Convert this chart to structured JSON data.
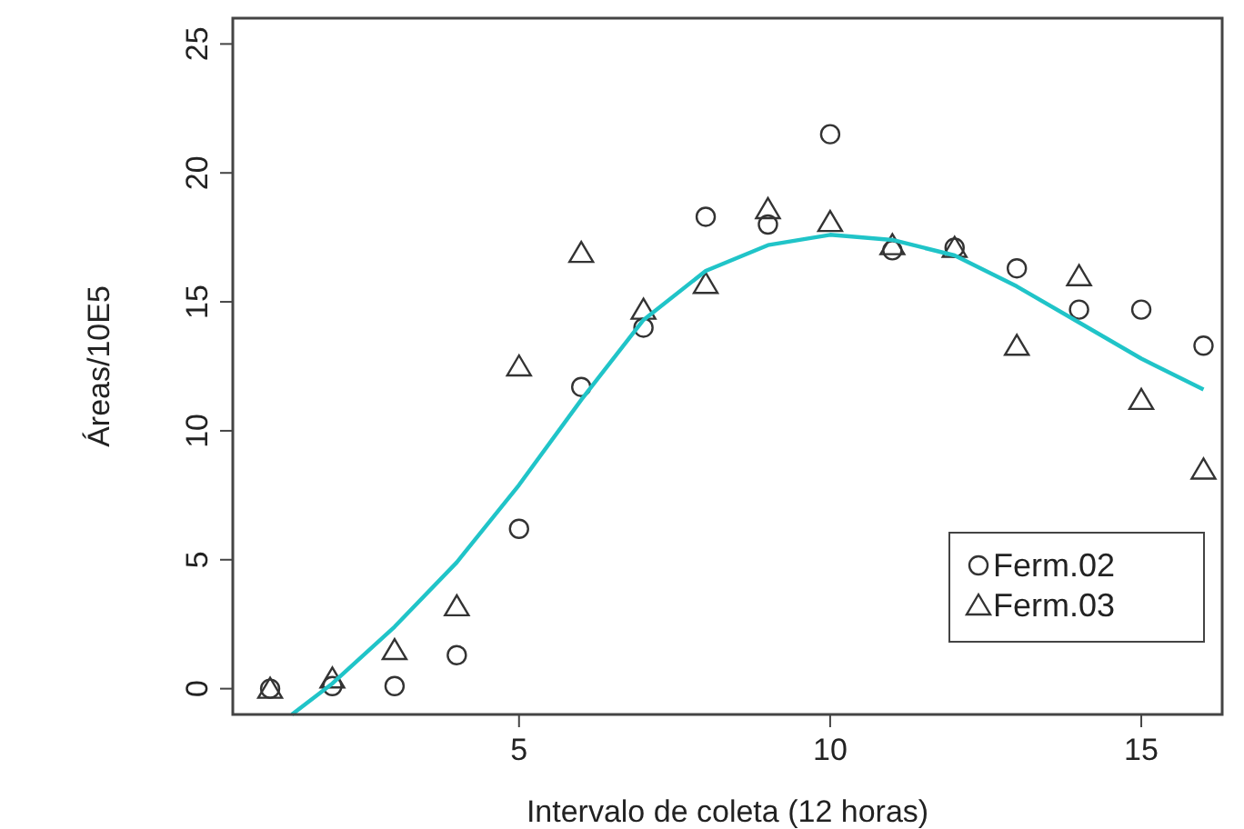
{
  "chart_data": {
    "type": "scatter",
    "xlabel": "Intervalo de coleta (12 horas)",
    "ylabel": "Áreas/10E5",
    "xlim": [
      0.4,
      16.3
    ],
    "ylim": [
      -1,
      26
    ],
    "xticks": [
      5,
      10,
      15
    ],
    "yticks": [
      0,
      5,
      10,
      15,
      20,
      25
    ],
    "grid": false,
    "legend": "bottom right",
    "x": [
      1,
      2,
      3,
      4,
      5,
      6,
      7,
      8,
      9,
      10,
      11,
      12,
      13,
      14,
      15,
      16
    ],
    "series": [
      {
        "name": "Ferm.02",
        "color": "#333333",
        "marker": "circle",
        "values": [
          0,
          0.1,
          0.1,
          1.3,
          6.2,
          11.7,
          14.0,
          18.3,
          18.0,
          21.5,
          17.0,
          17.1,
          16.3,
          14.7,
          14.7,
          13.3
        ]
      },
      {
        "name": "Ferm.03",
        "color": "#333333",
        "marker": "triangle",
        "values": [
          0,
          0.4,
          1.5,
          3.2,
          12.5,
          16.9,
          14.7,
          15.7,
          18.6,
          18.1,
          17.2,
          17.1,
          13.3,
          16.0,
          11.2,
          8.5
        ]
      },
      {
        "type": "line",
        "color": "#20c4c8",
        "x": [
          1.35,
          2,
          3,
          4,
          5,
          6,
          7,
          8,
          9,
          10,
          11,
          12,
          13,
          14,
          15,
          16
        ],
        "values": [
          -1,
          0.2,
          2.4,
          4.9,
          7.9,
          11.2,
          14.3,
          16.2,
          17.2,
          17.6,
          17.4,
          16.8,
          15.6,
          14.2,
          12.8,
          11.6
        ]
      }
    ]
  }
}
